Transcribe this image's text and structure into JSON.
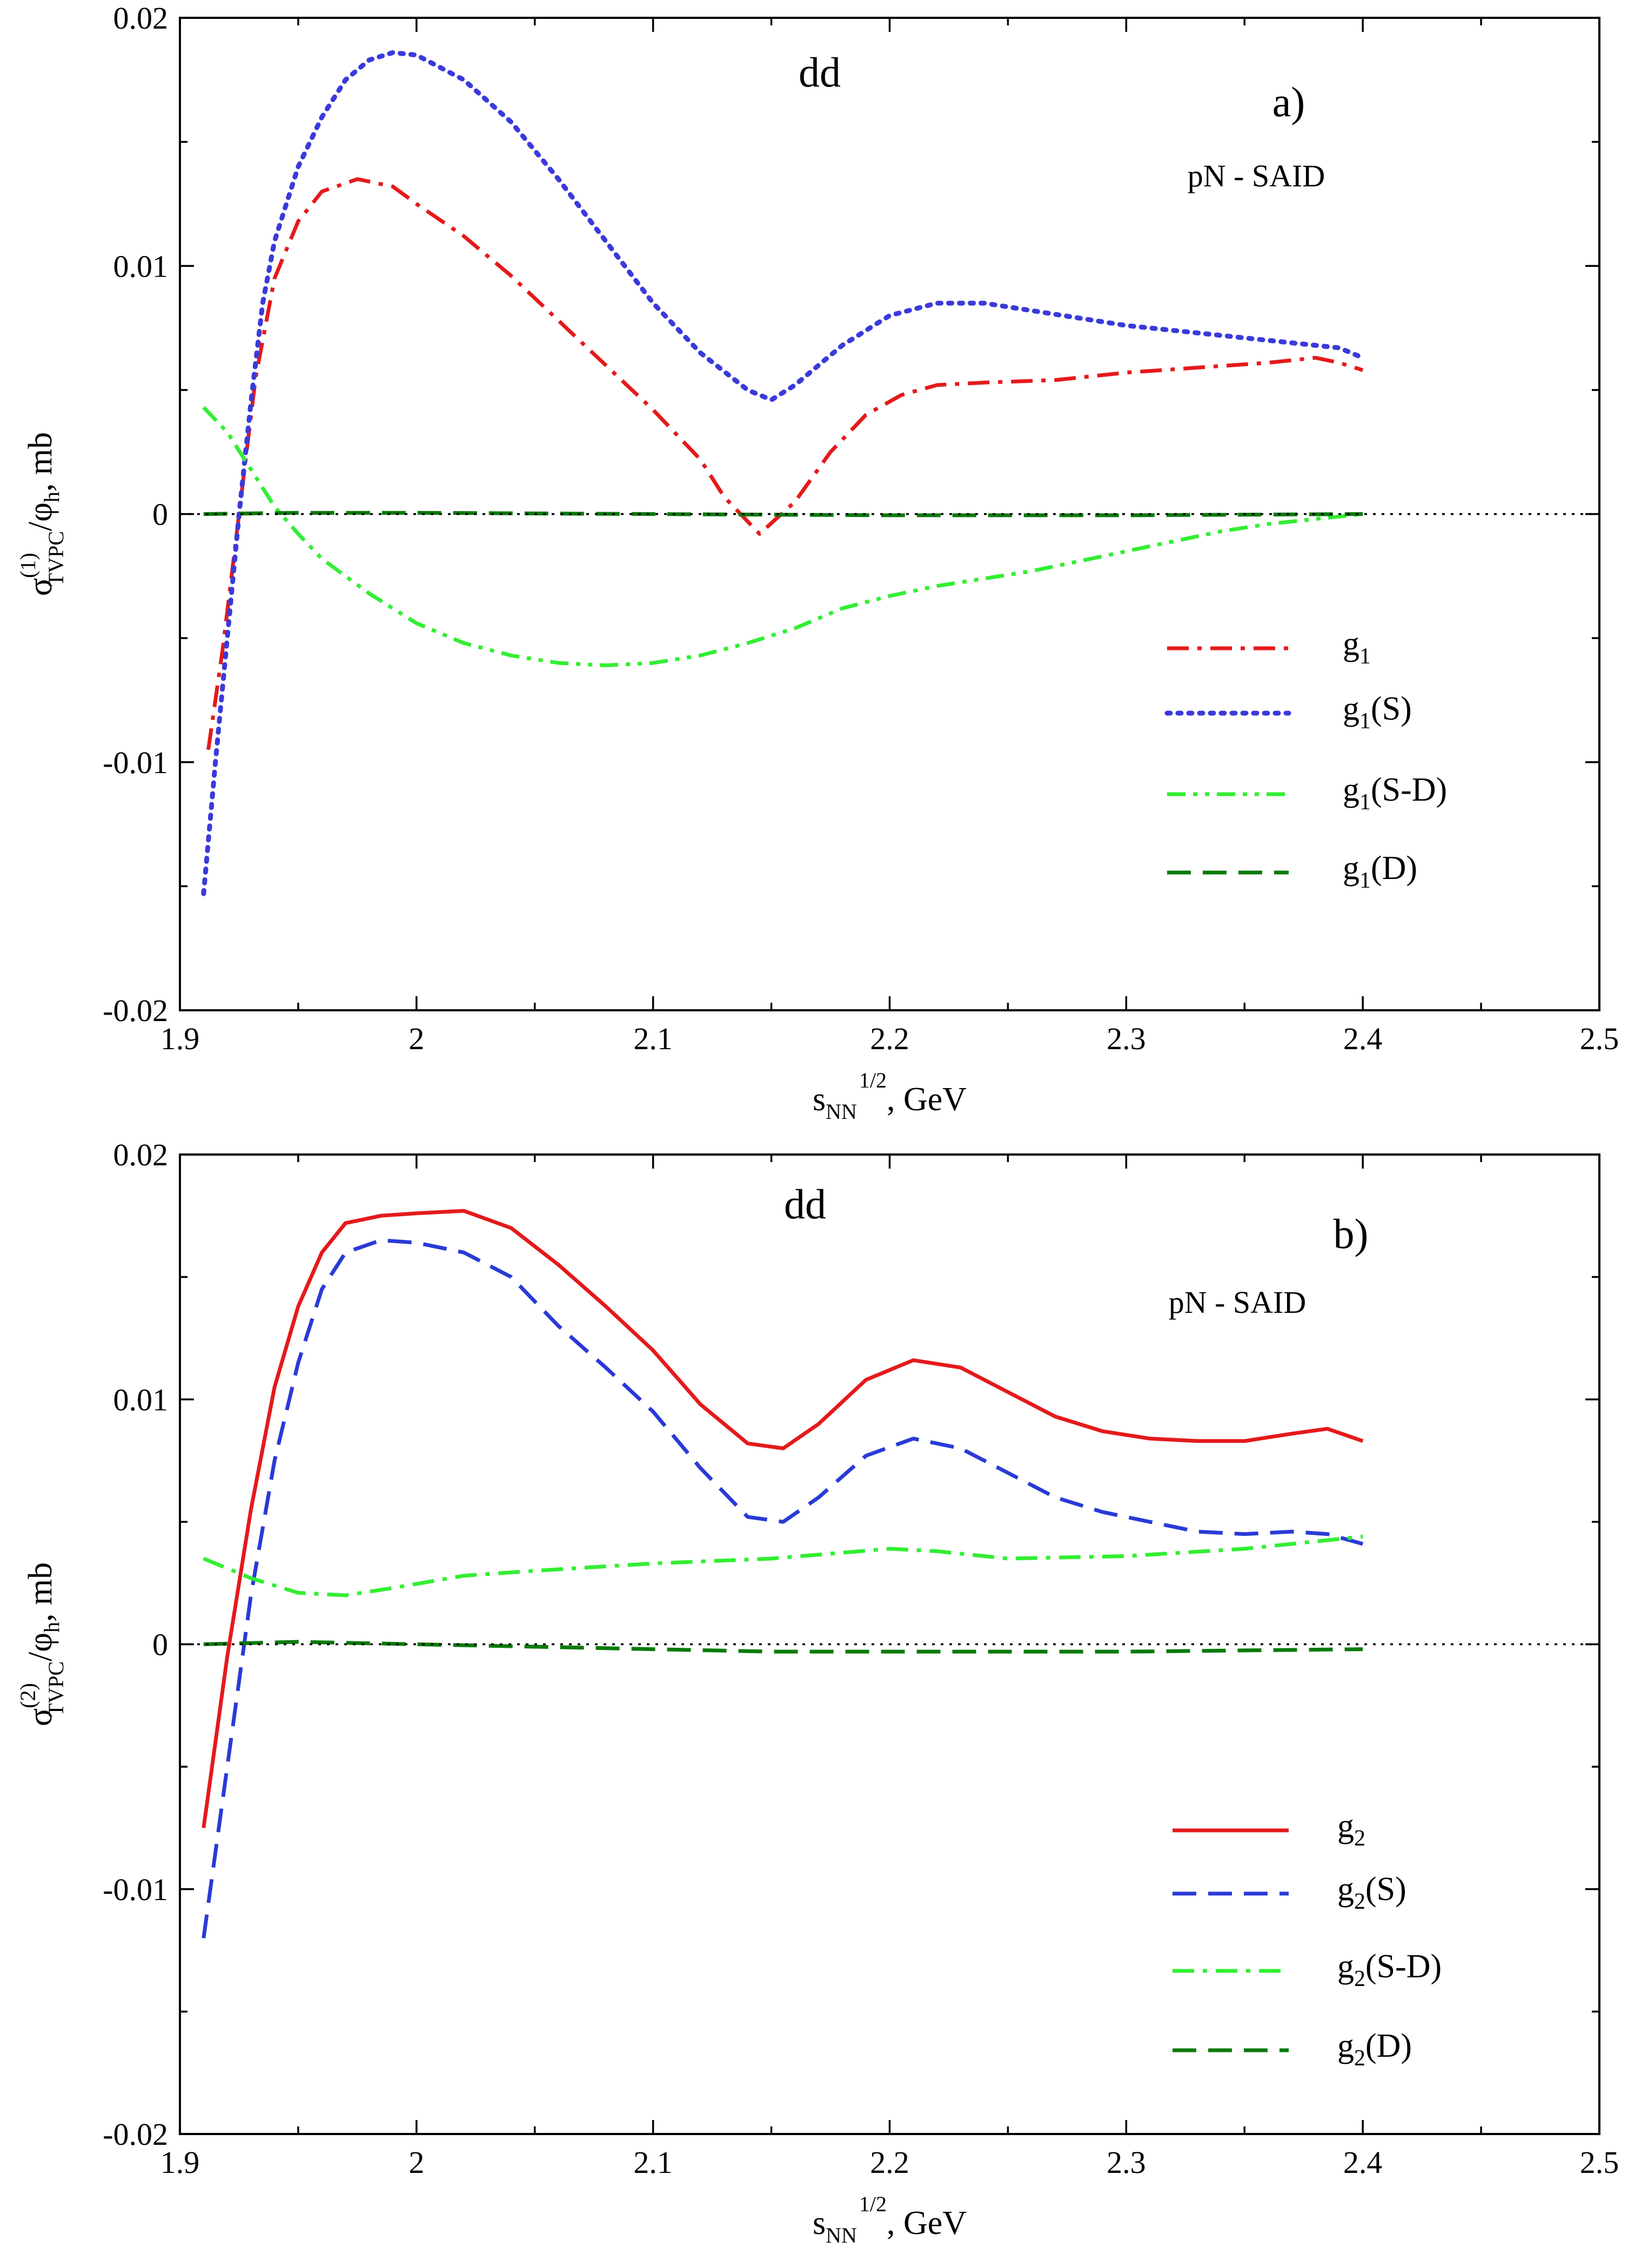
{
  "chart_data": [
    {
      "panel": "a",
      "type": "line",
      "xlabel_main": "s",
      "xlabel_sub": "NN",
      "xlabel_sup": "1/2",
      "xlabel_tail": ", GeV",
      "ylabel_main": "σ",
      "ylabel_sup": "(1)",
      "ylabel_sub": "TVPC",
      "ylabel_tail1": "/φ",
      "ylabel_sub2": "h",
      "ylabel_tail2": ", mb",
      "xlim": [
        1.9,
        2.5
      ],
      "ylim": [
        -0.02,
        0.02
      ],
      "x_ticks": [
        "1.9",
        "2",
        "2.1",
        "2.2",
        "2.3",
        "2.4",
        "2.5"
      ],
      "x_tick_values": [
        1.9,
        2.0,
        2.1,
        2.2,
        2.3,
        2.4,
        2.5
      ],
      "y_ticks": [
        "-0.02",
        "-0.01",
        "0",
        "0.01",
        "0.02"
      ],
      "y_tick_values": [
        -0.02,
        -0.01,
        0,
        0.01,
        0.02
      ],
      "annotations": {
        "label": "dd",
        "panel_tag": "a)",
        "model": "pN - SAID"
      },
      "legend_position": "right-middle",
      "series": [
        {
          "name": "g",
          "name_sub": "1",
          "name_tail": "",
          "color": "#e41a1c",
          "style": "dashdot",
          "x": [
            1.912,
            1.918,
            1.925,
            1.932,
            1.94,
            1.95,
            1.96,
            1.975,
            1.99,
            2.0,
            2.02,
            2.04,
            2.06,
            2.08,
            2.1,
            2.12,
            2.13,
            2.145,
            2.16,
            2.175,
            2.19,
            2.205,
            2.22,
            2.24,
            2.27,
            2.3,
            2.33,
            2.36,
            2.38,
            2.39,
            2.4
          ],
          "y": [
            -0.0095,
            -0.0055,
            0.0,
            0.0055,
            0.0095,
            0.0118,
            0.013,
            0.0135,
            0.0132,
            0.0125,
            0.0112,
            0.0096,
            0.0078,
            0.006,
            0.0042,
            0.0022,
            0.0007,
            -0.0008,
            0.0005,
            0.0025,
            0.004,
            0.0048,
            0.0052,
            0.0053,
            0.0054,
            0.0057,
            0.0059,
            0.0061,
            0.0063,
            0.0061,
            0.0058
          ]
        },
        {
          "name": "g",
          "name_sub": "1",
          "name_tail": "(S)",
          "color": "#3a3adb",
          "style": "dotted",
          "x": [
            1.91,
            1.915,
            1.92,
            1.925,
            1.93,
            1.935,
            1.94,
            1.95,
            1.96,
            1.97,
            1.98,
            1.99,
            2.0,
            2.02,
            2.04,
            2.06,
            2.08,
            2.1,
            2.12,
            2.14,
            2.15,
            2.16,
            2.18,
            2.2,
            2.22,
            2.24,
            2.26,
            2.28,
            2.3,
            2.33,
            2.36,
            2.39,
            2.4
          ],
          "y": [
            -0.0153,
            -0.01,
            -0.005,
            0.0,
            0.0045,
            0.0085,
            0.011,
            0.014,
            0.016,
            0.0175,
            0.0183,
            0.0186,
            0.0185,
            0.0175,
            0.0158,
            0.0135,
            0.011,
            0.0085,
            0.0065,
            0.005,
            0.0046,
            0.0052,
            0.0068,
            0.008,
            0.0085,
            0.0085,
            0.0082,
            0.0079,
            0.0076,
            0.0073,
            0.007,
            0.0067,
            0.0063
          ]
        },
        {
          "name": "g",
          "name_sub": "1",
          "name_tail": "(S-D)",
          "color": "#33ee33",
          "style": "dashdotdot",
          "x": [
            1.91,
            1.92,
            1.93,
            1.94,
            1.95,
            1.96,
            1.98,
            2.0,
            2.02,
            2.04,
            2.06,
            2.08,
            2.1,
            2.12,
            2.14,
            2.16,
            2.18,
            2.2,
            2.22,
            2.24,
            2.26,
            2.28,
            2.3,
            2.32,
            2.34,
            2.36,
            2.38,
            2.4
          ],
          "y": [
            0.0043,
            0.0033,
            0.0018,
            0.0003,
            -0.0008,
            -0.0018,
            -0.0032,
            -0.0044,
            -0.0052,
            -0.0057,
            -0.006,
            -0.0061,
            -0.006,
            -0.0057,
            -0.0052,
            -0.0046,
            -0.0038,
            -0.0033,
            -0.0029,
            -0.0026,
            -0.0023,
            -0.0019,
            -0.0015,
            -0.0011,
            -0.0007,
            -0.0004,
            -0.0002,
            0.0
          ]
        },
        {
          "name": "g",
          "name_sub": "1",
          "name_tail": "(D)",
          "color": "#0a7a0a",
          "style": "dashed",
          "x": [
            1.91,
            1.95,
            2.0,
            2.1,
            2.2,
            2.3,
            2.4
          ],
          "y": [
            0.0,
            5e-05,
            5e-05,
            0.0,
            -5e-05,
            -5e-05,
            0.0
          ]
        }
      ]
    },
    {
      "panel": "b",
      "type": "line",
      "xlabel_main": "s",
      "xlabel_sub": "NN",
      "xlabel_sup": "1/2",
      "xlabel_tail": ", GeV",
      "ylabel_main": "σ",
      "ylabel_sup": "(2)",
      "ylabel_sub": "TVPC",
      "ylabel_tail1": "/φ",
      "ylabel_sub2": "h",
      "ylabel_tail2": ", mb",
      "xlim": [
        1.9,
        2.5
      ],
      "ylim": [
        -0.02,
        0.02
      ],
      "x_ticks": [
        "1.9",
        "2",
        "2.1",
        "2.2",
        "2.3",
        "2.4",
        "2.5"
      ],
      "x_tick_values": [
        1.9,
        2.0,
        2.1,
        2.2,
        2.3,
        2.4,
        2.5
      ],
      "y_ticks": [
        "-0.02",
        "-0.01",
        "0",
        "0.01",
        "0.02"
      ],
      "y_tick_values": [
        -0.02,
        -0.01,
        0,
        0.01,
        0.02
      ],
      "annotations": {
        "label": "dd",
        "panel_tag": "b)",
        "model": "pN - SAID"
      },
      "legend_position": "right-bottom",
      "series": [
        {
          "name": "g",
          "name_sub": "2",
          "name_tail": "",
          "color": "#e41a1c",
          "style": "solid",
          "x": [
            1.91,
            1.92,
            1.93,
            1.94,
            1.95,
            1.96,
            1.97,
            1.985,
            2.0,
            2.02,
            2.04,
            2.06,
            2.08,
            2.1,
            2.12,
            2.14,
            2.155,
            2.17,
            2.19,
            2.21,
            2.23,
            2.25,
            2.27,
            2.29,
            2.31,
            2.33,
            2.35,
            2.37,
            2.385,
            2.4
          ],
          "y": [
            -0.0075,
            -0.0005,
            0.0055,
            0.0105,
            0.0138,
            0.016,
            0.0172,
            0.0175,
            0.0176,
            0.0177,
            0.017,
            0.0155,
            0.0138,
            0.012,
            0.0098,
            0.0082,
            0.008,
            0.009,
            0.0108,
            0.0116,
            0.0113,
            0.0103,
            0.0093,
            0.0087,
            0.0084,
            0.0083,
            0.0083,
            0.0086,
            0.0088,
            0.0083
          ]
        },
        {
          "name": "g",
          "name_sub": "2",
          "name_tail": "(S)",
          "color": "#2a3ad6",
          "style": "dashed",
          "x": [
            1.91,
            1.92,
            1.93,
            1.94,
            1.95,
            1.96,
            1.97,
            1.985,
            2.0,
            2.02,
            2.04,
            2.06,
            2.08,
            2.1,
            2.12,
            2.14,
            2.155,
            2.17,
            2.19,
            2.21,
            2.23,
            2.25,
            2.27,
            2.29,
            2.31,
            2.33,
            2.35,
            2.37,
            2.385,
            2.4
          ],
          "y": [
            -0.012,
            -0.005,
            0.002,
            0.0075,
            0.0115,
            0.0145,
            0.016,
            0.0165,
            0.0164,
            0.016,
            0.015,
            0.013,
            0.0113,
            0.0095,
            0.0072,
            0.0052,
            0.005,
            0.006,
            0.0077,
            0.0084,
            0.008,
            0.007,
            0.006,
            0.0054,
            0.005,
            0.0046,
            0.0045,
            0.0046,
            0.0045,
            0.0041
          ]
        },
        {
          "name": "g",
          "name_sub": "2",
          "name_tail": "(S-D)",
          "color": "#33ee33",
          "style": "dashdot",
          "x": [
            1.91,
            1.93,
            1.95,
            1.97,
            1.99,
            2.02,
            2.05,
            2.1,
            2.15,
            2.2,
            2.22,
            2.25,
            2.3,
            2.35,
            2.4
          ],
          "y": [
            0.0035,
            0.0027,
            0.0021,
            0.002,
            0.0023,
            0.0028,
            0.003,
            0.0033,
            0.0035,
            0.0039,
            0.0038,
            0.0035,
            0.0036,
            0.0039,
            0.0044
          ]
        },
        {
          "name": "g",
          "name_sub": "2",
          "name_tail": "(D)",
          "color": "#0a7a0a",
          "style": "dashed",
          "x": [
            1.91,
            1.95,
            2.0,
            2.05,
            2.1,
            2.15,
            2.2,
            2.3,
            2.4
          ],
          "y": [
            0.0,
            0.0001,
            0.0,
            -0.0001,
            -0.0002,
            -0.0003,
            -0.0003,
            -0.0003,
            -0.0002
          ]
        }
      ]
    }
  ]
}
